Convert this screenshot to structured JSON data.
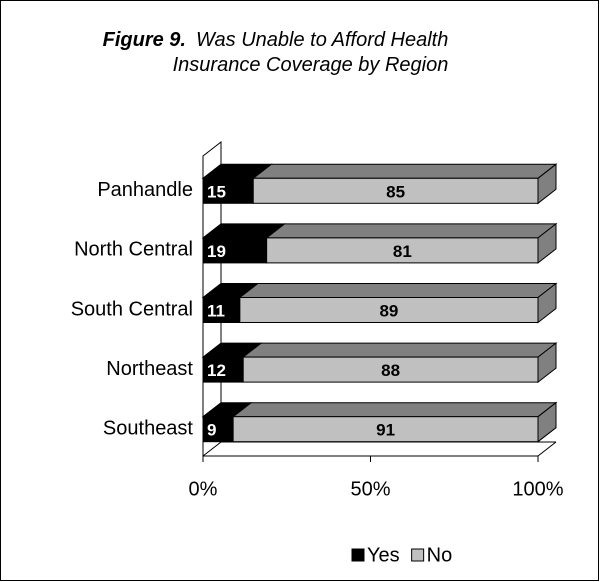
{
  "chart_data": {
    "type": "stacked_bar_horizontal",
    "title_label": "Figure 9.",
    "title": "Was Unable to Afford Health Insurance Coverage by Region",
    "categories": [
      "Panhandle",
      "North Central",
      "South Central",
      "Northeast",
      "Southeast"
    ],
    "series": [
      {
        "name": "Yes",
        "color": "#000000",
        "values": [
          15,
          19,
          11,
          12,
          9
        ]
      },
      {
        "name": "No",
        "color": "#c0c0c0",
        "values": [
          85,
          81,
          89,
          88,
          91
        ]
      }
    ],
    "xlim": [
      0,
      100
    ],
    "xticks": [
      {
        "value": 0,
        "label": "0%"
      },
      {
        "value": 50,
        "label": "50%"
      },
      {
        "value": 100,
        "label": "100%"
      }
    ],
    "legend": "bottom"
  }
}
